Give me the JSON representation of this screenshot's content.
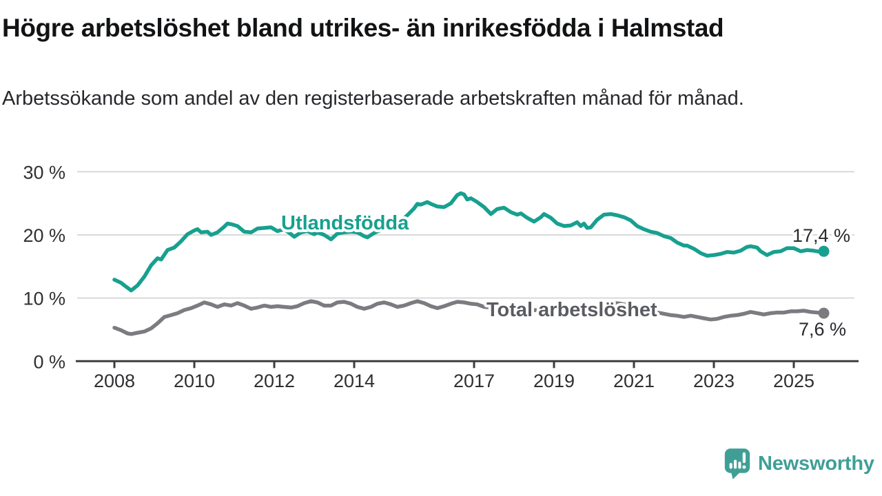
{
  "header": {
    "title": "Högre arbetslöshet bland utrikes- än inrikesfödda i Halmstad",
    "subtitle": "Arbetssökande som andel av den registerbaserade arbetskraften månad för månad."
  },
  "branding": {
    "logo_text": "Newsworthy",
    "logo_icon": "bar-chart-speech-bubble-icon",
    "logo_color": "#3f9f96"
  },
  "chart_data": {
    "type": "line",
    "title": "Högre arbetslöshet bland utrikes- än inrikesfödda i Halmstad",
    "unit": "%",
    "grid": "horizontal",
    "legend": "inline-labels",
    "x_axis": {
      "ticks": [
        2008,
        2010,
        2012,
        2014,
        2017,
        2019,
        2021,
        2023,
        2025
      ],
      "range": [
        2007.1,
        2026.6
      ]
    },
    "y_axis": {
      "ticks": [
        0,
        10,
        20,
        30
      ],
      "tick_labels": [
        "0 %",
        "10 %",
        "20 %",
        "30 %"
      ],
      "range": [
        0,
        32.5
      ]
    },
    "style": {
      "grid_color": "#d9d9d9",
      "axis_color": "#3d3d40",
      "tick_text_color": "#2f3033"
    },
    "series": [
      {
        "name": "Utlandsfödda",
        "color": "#17a08f",
        "label_color": "#17a08f",
        "end_label": "17,4 %",
        "end_value": 17.4,
        "points": [
          [
            2008.0,
            12.9
          ],
          [
            2008.17,
            12.4
          ],
          [
            2008.25,
            12.0
          ],
          [
            2008.42,
            11.2
          ],
          [
            2008.58,
            12.0
          ],
          [
            2008.75,
            13.4
          ],
          [
            2008.92,
            15.2
          ],
          [
            2009.08,
            16.3
          ],
          [
            2009.17,
            16.1
          ],
          [
            2009.33,
            17.6
          ],
          [
            2009.5,
            18.0
          ],
          [
            2009.67,
            19.0
          ],
          [
            2009.83,
            20.1
          ],
          [
            2010.0,
            20.7
          ],
          [
            2010.08,
            20.9
          ],
          [
            2010.17,
            20.4
          ],
          [
            2010.33,
            20.5
          ],
          [
            2010.42,
            20.0
          ],
          [
            2010.58,
            20.4
          ],
          [
            2010.75,
            21.3
          ],
          [
            2010.83,
            21.8
          ],
          [
            2010.92,
            21.7
          ],
          [
            2011.08,
            21.4
          ],
          [
            2011.25,
            20.5
          ],
          [
            2011.42,
            20.4
          ],
          [
            2011.58,
            21.0
          ],
          [
            2011.75,
            21.1
          ],
          [
            2011.92,
            21.2
          ],
          [
            2012.08,
            20.6
          ],
          [
            2012.25,
            20.9
          ],
          [
            2012.42,
            20.1
          ],
          [
            2012.5,
            19.7
          ],
          [
            2012.67,
            20.4
          ],
          [
            2012.83,
            20.6
          ],
          [
            2013.0,
            20.1
          ],
          [
            2013.08,
            20.4
          ],
          [
            2013.25,
            20.0
          ],
          [
            2013.42,
            19.3
          ],
          [
            2013.58,
            20.2
          ],
          [
            2013.75,
            20.4
          ],
          [
            2013.92,
            20.5
          ],
          [
            2014.08,
            20.4
          ],
          [
            2014.25,
            19.8
          ],
          [
            2014.33,
            19.6
          ],
          [
            2014.5,
            20.3
          ],
          [
            2014.67,
            20.8
          ],
          [
            2014.83,
            21.3
          ],
          [
            2015.0,
            21.7
          ],
          [
            2015.17,
            22.2
          ],
          [
            2015.33,
            23.1
          ],
          [
            2015.5,
            24.2
          ],
          [
            2015.58,
            24.9
          ],
          [
            2015.67,
            24.8
          ],
          [
            2015.83,
            25.2
          ],
          [
            2015.92,
            24.9
          ],
          [
            2016.08,
            24.5
          ],
          [
            2016.25,
            24.4
          ],
          [
            2016.42,
            25.0
          ],
          [
            2016.58,
            26.3
          ],
          [
            2016.67,
            26.6
          ],
          [
            2016.75,
            26.4
          ],
          [
            2016.83,
            25.6
          ],
          [
            2016.92,
            25.8
          ],
          [
            2017.08,
            25.2
          ],
          [
            2017.25,
            24.4
          ],
          [
            2017.42,
            23.3
          ],
          [
            2017.58,
            24.1
          ],
          [
            2017.75,
            24.3
          ],
          [
            2017.92,
            23.6
          ],
          [
            2018.08,
            23.2
          ],
          [
            2018.17,
            23.4
          ],
          [
            2018.33,
            22.7
          ],
          [
            2018.5,
            22.1
          ],
          [
            2018.67,
            22.8
          ],
          [
            2018.75,
            23.3
          ],
          [
            2018.92,
            22.7
          ],
          [
            2019.08,
            21.8
          ],
          [
            2019.25,
            21.4
          ],
          [
            2019.42,
            21.5
          ],
          [
            2019.58,
            22.0
          ],
          [
            2019.67,
            21.4
          ],
          [
            2019.75,
            21.8
          ],
          [
            2019.83,
            21.1
          ],
          [
            2019.92,
            21.2
          ],
          [
            2020.08,
            22.4
          ],
          [
            2020.25,
            23.2
          ],
          [
            2020.42,
            23.3
          ],
          [
            2020.58,
            23.1
          ],
          [
            2020.75,
            22.8
          ],
          [
            2020.92,
            22.3
          ],
          [
            2021.08,
            21.4
          ],
          [
            2021.25,
            20.9
          ],
          [
            2021.42,
            20.5
          ],
          [
            2021.58,
            20.3
          ],
          [
            2021.75,
            19.8
          ],
          [
            2021.92,
            19.5
          ],
          [
            2022.08,
            18.8
          ],
          [
            2022.25,
            18.3
          ],
          [
            2022.33,
            18.3
          ],
          [
            2022.5,
            17.8
          ],
          [
            2022.67,
            17.1
          ],
          [
            2022.83,
            16.7
          ],
          [
            2023.0,
            16.8
          ],
          [
            2023.17,
            17.0
          ],
          [
            2023.33,
            17.3
          ],
          [
            2023.5,
            17.2
          ],
          [
            2023.67,
            17.5
          ],
          [
            2023.83,
            18.1
          ],
          [
            2023.92,
            18.2
          ],
          [
            2024.08,
            18.0
          ],
          [
            2024.17,
            17.4
          ],
          [
            2024.33,
            16.8
          ],
          [
            2024.5,
            17.3
          ],
          [
            2024.67,
            17.4
          ],
          [
            2024.83,
            17.9
          ],
          [
            2025.0,
            17.9
          ],
          [
            2025.17,
            17.4
          ],
          [
            2025.33,
            17.6
          ],
          [
            2025.5,
            17.5
          ],
          [
            2025.67,
            17.3
          ],
          [
            2025.75,
            17.4
          ]
        ]
      },
      {
        "name": "Total arbetslöshet",
        "color": "#7b7b80",
        "label_color": "#5b5c62",
        "end_label": "7,6 %",
        "end_value": 7.6,
        "points": [
          [
            2008.0,
            5.3
          ],
          [
            2008.17,
            4.9
          ],
          [
            2008.33,
            4.4
          ],
          [
            2008.42,
            4.3
          ],
          [
            2008.58,
            4.5
          ],
          [
            2008.75,
            4.7
          ],
          [
            2008.92,
            5.2
          ],
          [
            2009.08,
            6.0
          ],
          [
            2009.25,
            7.0
          ],
          [
            2009.42,
            7.3
          ],
          [
            2009.58,
            7.6
          ],
          [
            2009.75,
            8.1
          ],
          [
            2009.92,
            8.4
          ],
          [
            2010.08,
            8.8
          ],
          [
            2010.25,
            9.3
          ],
          [
            2010.42,
            9.0
          ],
          [
            2010.58,
            8.6
          ],
          [
            2010.75,
            9.0
          ],
          [
            2010.92,
            8.8
          ],
          [
            2011.08,
            9.2
          ],
          [
            2011.25,
            8.8
          ],
          [
            2011.42,
            8.3
          ],
          [
            2011.58,
            8.5
          ],
          [
            2011.75,
            8.8
          ],
          [
            2011.92,
            8.6
          ],
          [
            2012.08,
            8.7
          ],
          [
            2012.25,
            8.6
          ],
          [
            2012.42,
            8.5
          ],
          [
            2012.58,
            8.7
          ],
          [
            2012.75,
            9.2
          ],
          [
            2012.92,
            9.5
          ],
          [
            2013.08,
            9.3
          ],
          [
            2013.25,
            8.8
          ],
          [
            2013.42,
            8.8
          ],
          [
            2013.58,
            9.3
          ],
          [
            2013.75,
            9.4
          ],
          [
            2013.92,
            9.1
          ],
          [
            2014.08,
            8.6
          ],
          [
            2014.25,
            8.3
          ],
          [
            2014.42,
            8.6
          ],
          [
            2014.58,
            9.1
          ],
          [
            2014.75,
            9.3
          ],
          [
            2014.92,
            9.0
          ],
          [
            2015.08,
            8.6
          ],
          [
            2015.25,
            8.8
          ],
          [
            2015.42,
            9.2
          ],
          [
            2015.58,
            9.5
          ],
          [
            2015.75,
            9.2
          ],
          [
            2015.92,
            8.7
          ],
          [
            2016.08,
            8.4
          ],
          [
            2016.25,
            8.7
          ],
          [
            2016.42,
            9.1
          ],
          [
            2016.58,
            9.4
          ],
          [
            2016.75,
            9.3
          ],
          [
            2016.92,
            9.1
          ],
          [
            2017.08,
            9.0
          ],
          [
            2017.25,
            8.6
          ],
          [
            2017.42,
            8.5
          ],
          [
            2017.58,
            8.6
          ],
          [
            2017.75,
            8.7
          ],
          [
            2017.92,
            8.6
          ],
          [
            2018.17,
            8.3
          ],
          [
            2018.42,
            8.0
          ],
          [
            2018.67,
            8.2
          ],
          [
            2018.92,
            8.1
          ],
          [
            2019.17,
            7.9
          ],
          [
            2019.42,
            7.9
          ],
          [
            2019.67,
            8.0
          ],
          [
            2019.92,
            8.2
          ],
          [
            2020.17,
            8.9
          ],
          [
            2020.42,
            9.3
          ],
          [
            2020.67,
            9.1
          ],
          [
            2020.92,
            8.8
          ],
          [
            2021.17,
            8.4
          ],
          [
            2021.42,
            7.9
          ],
          [
            2021.67,
            7.6
          ],
          [
            2021.92,
            7.3
          ],
          [
            2022.08,
            7.2
          ],
          [
            2022.25,
            7.0
          ],
          [
            2022.42,
            7.2
          ],
          [
            2022.58,
            7.0
          ],
          [
            2022.75,
            6.8
          ],
          [
            2022.92,
            6.6
          ],
          [
            2023.08,
            6.7
          ],
          [
            2023.25,
            7.0
          ],
          [
            2023.42,
            7.2
          ],
          [
            2023.58,
            7.3
          ],
          [
            2023.75,
            7.5
          ],
          [
            2023.92,
            7.8
          ],
          [
            2024.08,
            7.6
          ],
          [
            2024.25,
            7.4
          ],
          [
            2024.42,
            7.6
          ],
          [
            2024.58,
            7.7
          ],
          [
            2024.75,
            7.7
          ],
          [
            2024.92,
            7.9
          ],
          [
            2025.08,
            7.9
          ],
          [
            2025.25,
            8.0
          ],
          [
            2025.42,
            7.8
          ],
          [
            2025.58,
            7.7
          ],
          [
            2025.75,
            7.6
          ]
        ]
      }
    ]
  }
}
